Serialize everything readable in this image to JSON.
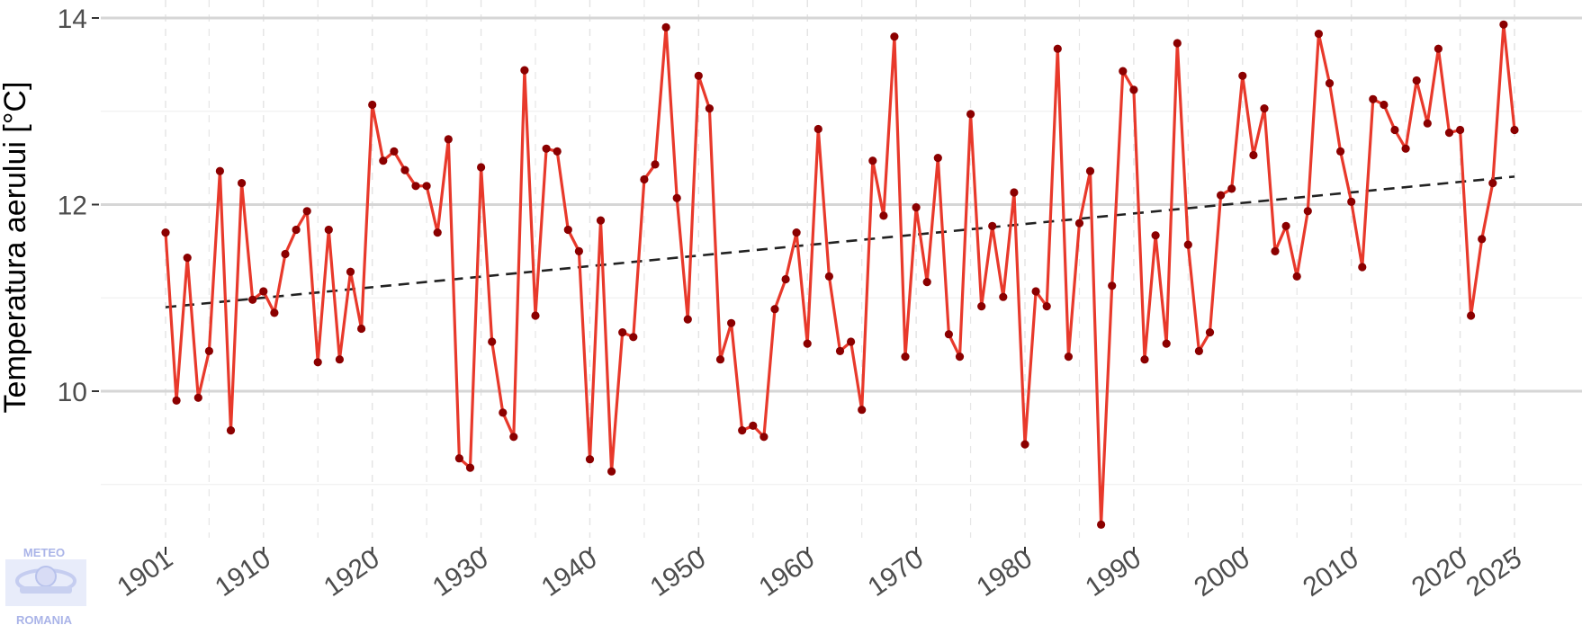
{
  "chart_data": {
    "type": "line",
    "title": "",
    "xlabel": "",
    "ylabel": "Temperatura aerului [°C]",
    "xlim": [
      1901,
      2025
    ],
    "ylim": [
      8.5,
      14
    ],
    "x_ticks": [
      1901,
      1910,
      1920,
      1930,
      1940,
      1950,
      1960,
      1970,
      1980,
      1990,
      2000,
      2010,
      2020,
      2025
    ],
    "y_ticks": [
      10,
      12,
      14
    ],
    "grid": true,
    "legend": "none",
    "series": [
      {
        "color": "#e8392b",
        "marker_color": "#8b0000",
        "x": [
          1901,
          1902,
          1903,
          1904,
          1905,
          1906,
          1907,
          1908,
          1909,
          1910,
          1911,
          1912,
          1913,
          1914,
          1915,
          1916,
          1917,
          1918,
          1919,
          1920,
          1921,
          1922,
          1923,
          1924,
          1925,
          1926,
          1927,
          1928,
          1929,
          1930,
          1931,
          1932,
          1933,
          1934,
          1935,
          1936,
          1937,
          1938,
          1939,
          1940,
          1941,
          1942,
          1943,
          1944,
          1945,
          1946,
          1947,
          1948,
          1949,
          1950,
          1951,
          1952,
          1953,
          1954,
          1955,
          1956,
          1957,
          1958,
          1959,
          1960,
          1961,
          1962,
          1963,
          1964,
          1965,
          1966,
          1967,
          1968,
          1969,
          1970,
          1971,
          1972,
          1973,
          1974,
          1975,
          1976,
          1977,
          1978,
          1979,
          1980,
          1981,
          1982,
          1983,
          1984,
          1985,
          1986,
          1987,
          1988,
          1989,
          1990,
          1991,
          1992,
          1993,
          1994,
          1995,
          1996,
          1997,
          1998,
          1999,
          2000,
          2001,
          2002,
          2003,
          2004,
          2005,
          2006,
          2007,
          2008,
          2009,
          2010,
          2011,
          2012,
          2013,
          2014,
          2015,
          2016,
          2017,
          2018,
          2019,
          2020,
          2021,
          2022,
          2023,
          2024,
          2025
        ],
        "values": [
          11.7,
          9.9,
          11.43,
          9.93,
          10.43,
          12.36,
          9.58,
          12.23,
          10.98,
          11.07,
          10.84,
          11.47,
          11.73,
          11.93,
          10.31,
          11.73,
          10.34,
          11.28,
          10.67,
          13.07,
          12.47,
          12.57,
          12.37,
          12.2,
          12.2,
          11.7,
          12.7,
          9.28,
          9.18,
          12.4,
          10.53,
          9.77,
          9.51,
          13.44,
          10.81,
          12.6,
          12.57,
          11.73,
          11.5,
          9.27,
          11.83,
          9.14,
          10.63,
          10.58,
          12.27,
          12.43,
          13.9,
          12.07,
          10.77,
          13.38,
          13.03,
          10.34,
          10.73,
          9.58,
          9.63,
          9.51,
          10.88,
          11.2,
          11.7,
          10.51,
          12.81,
          11.23,
          10.43,
          10.53,
          9.8,
          12.47,
          11.88,
          13.8,
          10.37,
          11.97,
          11.17,
          12.5,
          10.61,
          10.37,
          12.97,
          10.91,
          11.77,
          11.01,
          12.13,
          9.43,
          11.07,
          10.91,
          13.67,
          10.37,
          11.8,
          12.36,
          8.57,
          11.13,
          13.43,
          13.23,
          10.34,
          11.67,
          10.51,
          13.73,
          11.57,
          10.43,
          10.63,
          12.1,
          12.17,
          13.38,
          12.53,
          13.03,
          11.5,
          11.77,
          11.23,
          11.93,
          13.83,
          13.3,
          12.57,
          12.03,
          11.33,
          13.13,
          13.07,
          12.8,
          12.6,
          13.33,
          12.87,
          13.67,
          12.77,
          12.8,
          10.81,
          11.63,
          12.23,
          13.93,
          12.8
        ]
      }
    ],
    "trend": {
      "style": "dashed",
      "color": "#222222",
      "x": [
        1901,
        2025
      ],
      "values": [
        10.9,
        12.3
      ]
    }
  },
  "logo": {
    "top": "METEO",
    "bottom": "ROMANIA"
  }
}
